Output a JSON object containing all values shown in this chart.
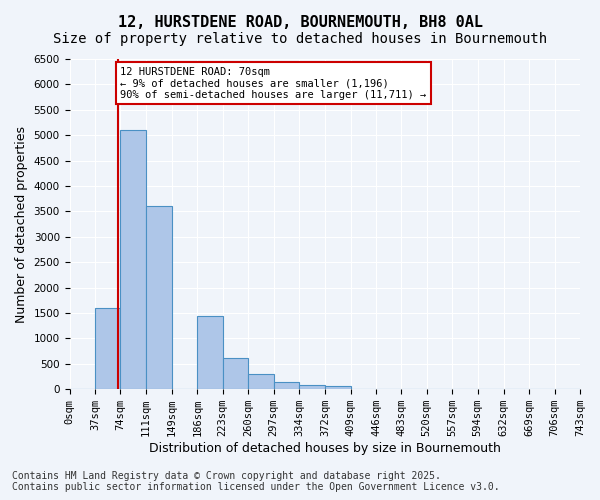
{
  "title_line1": "12, HURSTDENE ROAD, BOURNEMOUTH, BH8 0AL",
  "title_line2": "Size of property relative to detached houses in Bournemouth",
  "xlabel": "Distribution of detached houses by size in Bournemouth",
  "ylabel": "Number of detached properties",
  "bar_values": [
    0,
    1600,
    5100,
    3600,
    0,
    1450,
    620,
    300,
    150,
    90,
    55,
    0,
    0,
    0,
    0,
    0,
    0,
    0,
    0,
    0
  ],
  "bin_edges": [
    0,
    37,
    74,
    111,
    149,
    186,
    223,
    260,
    297,
    334,
    372,
    409,
    446,
    483,
    520,
    557,
    594,
    632,
    669,
    706,
    743
  ],
  "bin_labels": [
    "0sqm",
    "37sqm",
    "74sqm",
    "111sqm",
    "149sqm",
    "186sqm",
    "223sqm",
    "260sqm",
    "297sqm",
    "334sqm",
    "372sqm",
    "409sqm",
    "446sqm",
    "483sqm",
    "520sqm",
    "557sqm",
    "594sqm",
    "632sqm",
    "669sqm",
    "706sqm",
    "743sqm"
  ],
  "bar_color": "#aec6e8",
  "bar_edge_color": "#4a90c4",
  "vline_x": 70,
  "vline_color": "#cc0000",
  "ylim": [
    0,
    6500
  ],
  "yticks": [
    0,
    500,
    1000,
    1500,
    2000,
    2500,
    3000,
    3500,
    4000,
    4500,
    5000,
    5500,
    6000,
    6500
  ],
  "annotation_text": "12 HURSTDENE ROAD: 70sqm\n← 9% of detached houses are smaller (1,196)\n90% of semi-detached houses are larger (11,711) →",
  "annotation_box_color": "#ffffff",
  "annotation_box_edge": "#cc0000",
  "footer_line1": "Contains HM Land Registry data © Crown copyright and database right 2025.",
  "footer_line2": "Contains public sector information licensed under the Open Government Licence v3.0.",
  "bg_color": "#f0f4fa",
  "grid_color": "#ffffff",
  "title_fontsize": 11,
  "subtitle_fontsize": 10,
  "axis_label_fontsize": 9,
  "tick_fontsize": 7.5,
  "footer_fontsize": 7
}
